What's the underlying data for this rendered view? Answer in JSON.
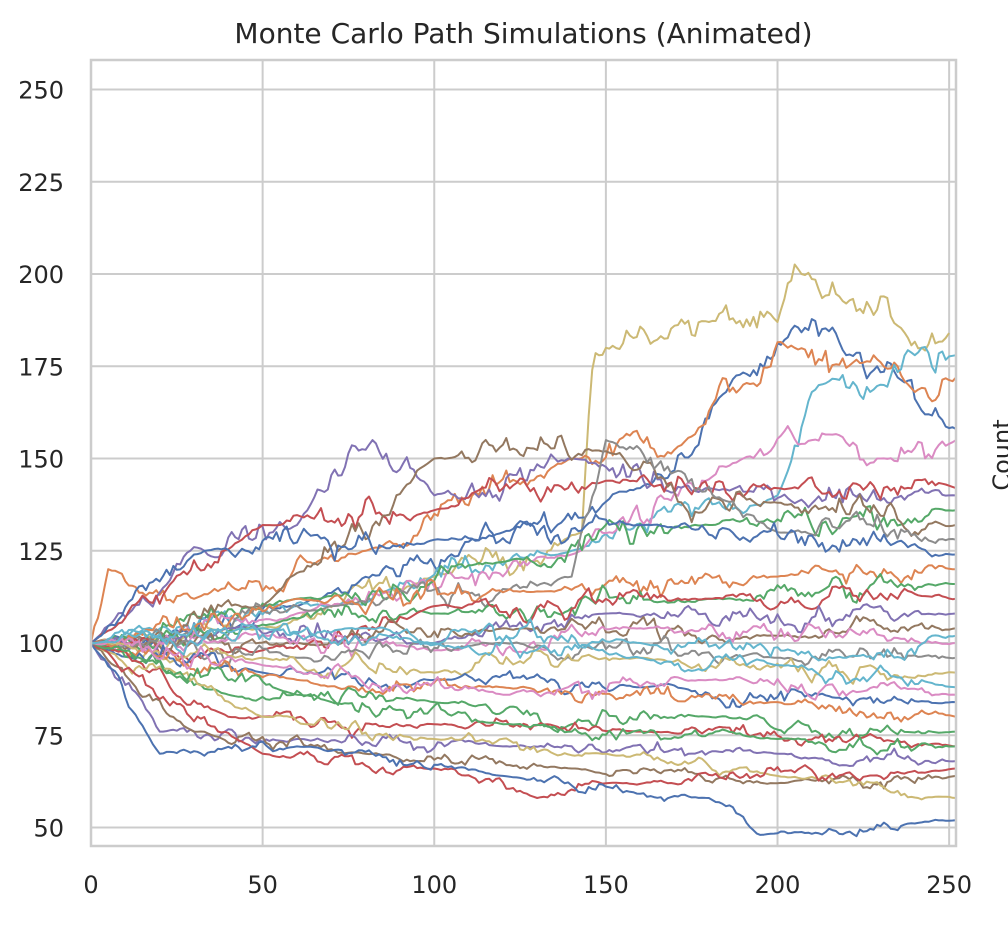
{
  "chart_data": {
    "type": "line",
    "title": "Monte Carlo Path Simulations (Animated)",
    "xlabel": "",
    "ylabel": "",
    "secondary_axis_label": "Count",
    "xlim": [
      0,
      252
    ],
    "ylim": [
      45,
      258
    ],
    "x_ticks": [
      0,
      50,
      100,
      150,
      200,
      250
    ],
    "x_tick_labels": [
      "0",
      "50",
      "100",
      "150",
      "200",
      "250"
    ],
    "y_ticks": [
      50,
      75,
      100,
      125,
      150,
      175,
      200,
      225,
      250
    ],
    "y_tick_labels": [
      "50",
      "75",
      "100",
      "125",
      "150",
      "175",
      "200",
      "225",
      "250"
    ],
    "grid": true,
    "legend": "none",
    "start_value": 100,
    "num_steps": 252,
    "palette": [
      "#4c72b0",
      "#dd8452",
      "#55a868",
      "#c44e52",
      "#8172b3",
      "#937860",
      "#da8bc3",
      "#8c8c8c",
      "#ccb974",
      "#64b5cd"
    ],
    "series": [
      {
        "color": "#ccb974",
        "values": [
          [
            0,
            100
          ],
          [
            50,
            104
          ],
          [
            100,
            118
          ],
          [
            143,
            130
          ],
          [
            146,
            174
          ],
          [
            150,
            180
          ],
          [
            170,
            186
          ],
          [
            180,
            187
          ],
          [
            200,
            187
          ],
          [
            207,
            200
          ],
          [
            220,
            192
          ],
          [
            235,
            186
          ],
          [
            250,
            184
          ]
        ]
      },
      {
        "color": "#4c72b0",
        "values": [
          [
            0,
            100
          ],
          [
            60,
            110
          ],
          [
            120,
            130
          ],
          [
            160,
            142
          ],
          [
            185,
            168
          ],
          [
            205,
            186
          ],
          [
            220,
            178
          ],
          [
            235,
            172
          ],
          [
            252,
            158
          ]
        ]
      },
      {
        "color": "#dd8452",
        "values": [
          [
            0,
            100
          ],
          [
            5,
            120
          ],
          [
            30,
            112
          ],
          [
            80,
            125
          ],
          [
            140,
            150
          ],
          [
            175,
            156
          ],
          [
            190,
            170
          ],
          [
            205,
            180
          ],
          [
            225,
            176
          ],
          [
            240,
            168
          ],
          [
            252,
            172
          ]
        ]
      },
      {
        "color": "#64b5cd",
        "values": [
          [
            0,
            100
          ],
          [
            70,
            110
          ],
          [
            140,
            125
          ],
          [
            200,
            140
          ],
          [
            210,
            168
          ],
          [
            230,
            170
          ],
          [
            240,
            178
          ],
          [
            252,
            178
          ]
        ]
      },
      {
        "color": "#da8bc3",
        "values": [
          [
            0,
            100
          ],
          [
            60,
            108
          ],
          [
            140,
            124
          ],
          [
            190,
            150
          ],
          [
            210,
            155
          ],
          [
            230,
            150
          ],
          [
            252,
            155
          ]
        ]
      },
      {
        "color": "#8172b3",
        "values": [
          [
            0,
            100
          ],
          [
            30,
            126
          ],
          [
            60,
            132
          ],
          [
            82,
            155
          ],
          [
            100,
            140
          ],
          [
            140,
            150
          ],
          [
            180,
            142
          ],
          [
            252,
            140
          ]
        ]
      },
      {
        "color": "#c44e52",
        "values": [
          [
            0,
            100
          ],
          [
            50,
            132
          ],
          [
            100,
            136
          ],
          [
            150,
            144
          ],
          [
            200,
            142
          ],
          [
            252,
            142
          ]
        ]
      },
      {
        "color": "#55a868",
        "values": [
          [
            0,
            100
          ],
          [
            60,
            112
          ],
          [
            120,
            122
          ],
          [
            180,
            132
          ],
          [
            252,
            136
          ]
        ]
      },
      {
        "color": "#937860",
        "values": [
          [
            0,
            100
          ],
          [
            50,
            110
          ],
          [
            100,
            150
          ],
          [
            150,
            152
          ],
          [
            200,
            138
          ],
          [
            252,
            132
          ]
        ]
      },
      {
        "color": "#8c8c8c",
        "values": [
          [
            0,
            100
          ],
          [
            70,
            110
          ],
          [
            140,
            118
          ],
          [
            150,
            155
          ],
          [
            200,
            130
          ],
          [
            252,
            128
          ]
        ]
      },
      {
        "color": "#4c72b0",
        "values": [
          [
            0,
            100
          ],
          [
            30,
            124
          ],
          [
            100,
            128
          ],
          [
            160,
            132
          ],
          [
            252,
            124
          ]
        ]
      },
      {
        "color": "#dd8452",
        "values": [
          [
            0,
            100
          ],
          [
            60,
            112
          ],
          [
            130,
            114
          ],
          [
            200,
            118
          ],
          [
            252,
            120
          ]
        ]
      },
      {
        "color": "#55a868",
        "values": [
          [
            0,
            100
          ],
          [
            50,
            105
          ],
          [
            100,
            108
          ],
          [
            180,
            112
          ],
          [
            252,
            116
          ]
        ]
      },
      {
        "color": "#c44e52",
        "values": [
          [
            0,
            100
          ],
          [
            50,
            98
          ],
          [
            100,
            110
          ],
          [
            180,
            112
          ],
          [
            252,
            112
          ]
        ]
      },
      {
        "color": "#8172b3",
        "values": [
          [
            0,
            100
          ],
          [
            40,
            104
          ],
          [
            100,
            100
          ],
          [
            150,
            108
          ],
          [
            252,
            108
          ]
        ]
      },
      {
        "color": "#937860",
        "values": [
          [
            0,
            100
          ],
          [
            60,
            100
          ],
          [
            120,
            104
          ],
          [
            200,
            102
          ],
          [
            252,
            104
          ]
        ]
      },
      {
        "color": "#da8bc3",
        "values": [
          [
            0,
            100
          ],
          [
            50,
            102
          ],
          [
            100,
            98
          ],
          [
            160,
            104
          ],
          [
            252,
            100
          ]
        ]
      },
      {
        "color": "#8c8c8c",
        "values": [
          [
            0,
            100
          ],
          [
            60,
            96
          ],
          [
            120,
            100
          ],
          [
            200,
            96
          ],
          [
            252,
            96
          ]
        ]
      },
      {
        "color": "#ccb974",
        "values": [
          [
            0,
            100
          ],
          [
            50,
            96
          ],
          [
            100,
            92
          ],
          [
            160,
            96
          ],
          [
            252,
            92
          ]
        ]
      },
      {
        "color": "#64b5cd",
        "values": [
          [
            0,
            100
          ],
          [
            50,
            104
          ],
          [
            100,
            100
          ],
          [
            160,
            96
          ],
          [
            200,
            94
          ],
          [
            252,
            88
          ]
        ]
      },
      {
        "color": "#4c72b0",
        "values": [
          [
            0,
            100
          ],
          [
            50,
            92
          ],
          [
            100,
            90
          ],
          [
            160,
            88
          ],
          [
            252,
            84
          ]
        ]
      },
      {
        "color": "#dd8452",
        "values": [
          [
            0,
            100
          ],
          [
            60,
            90
          ],
          [
            120,
            88
          ],
          [
            200,
            84
          ],
          [
            252,
            80
          ]
        ]
      },
      {
        "color": "#55a868",
        "values": [
          [
            0,
            100
          ],
          [
            40,
            86
          ],
          [
            100,
            84
          ],
          [
            180,
            80
          ],
          [
            252,
            76
          ]
        ]
      },
      {
        "color": "#c44e52",
        "values": [
          [
            0,
            100
          ],
          [
            40,
            80
          ],
          [
            100,
            78
          ],
          [
            160,
            76
          ],
          [
            252,
            72
          ]
        ]
      },
      {
        "color": "#8172b3",
        "values": [
          [
            0,
            100
          ],
          [
            20,
            76
          ],
          [
            60,
            74
          ],
          [
            120,
            72
          ],
          [
            200,
            70
          ],
          [
            252,
            68
          ]
        ]
      },
      {
        "color": "#937860",
        "values": [
          [
            0,
            100
          ],
          [
            30,
            76
          ],
          [
            80,
            70
          ],
          [
            140,
            66
          ],
          [
            200,
            62
          ],
          [
            252,
            64
          ]
        ]
      },
      {
        "color": "#ccb974",
        "values": [
          [
            0,
            100
          ],
          [
            50,
            80
          ],
          [
            100,
            74
          ],
          [
            150,
            70
          ],
          [
            200,
            64
          ],
          [
            252,
            58
          ]
        ]
      },
      {
        "color": "#c44e52",
        "values": [
          [
            0,
            100
          ],
          [
            50,
            70
          ],
          [
            100,
            66
          ],
          [
            130,
            58
          ],
          [
            150,
            62
          ],
          [
            252,
            66
          ]
        ]
      },
      {
        "color": "#4c72b0",
        "values": [
          [
            0,
            100
          ],
          [
            20,
            70
          ],
          [
            60,
            72
          ],
          [
            120,
            64
          ],
          [
            180,
            58
          ],
          [
            195,
            48
          ],
          [
            252,
            52
          ]
        ]
      },
      {
        "color": "#55a868",
        "values": [
          [
            0,
            100
          ],
          [
            60,
            86
          ],
          [
            120,
            78
          ],
          [
            200,
            74
          ],
          [
            252,
            72
          ]
        ]
      },
      {
        "color": "#da8bc3",
        "values": [
          [
            0,
            100
          ],
          [
            50,
            94
          ],
          [
            120,
            86
          ],
          [
            180,
            90
          ],
          [
            252,
            86
          ]
        ]
      },
      {
        "color": "#64b5cd",
        "values": [
          [
            0,
            100
          ],
          [
            80,
            104
          ],
          [
            160,
            100
          ],
          [
            220,
            96
          ],
          [
            252,
            102
          ]
        ]
      }
    ]
  }
}
